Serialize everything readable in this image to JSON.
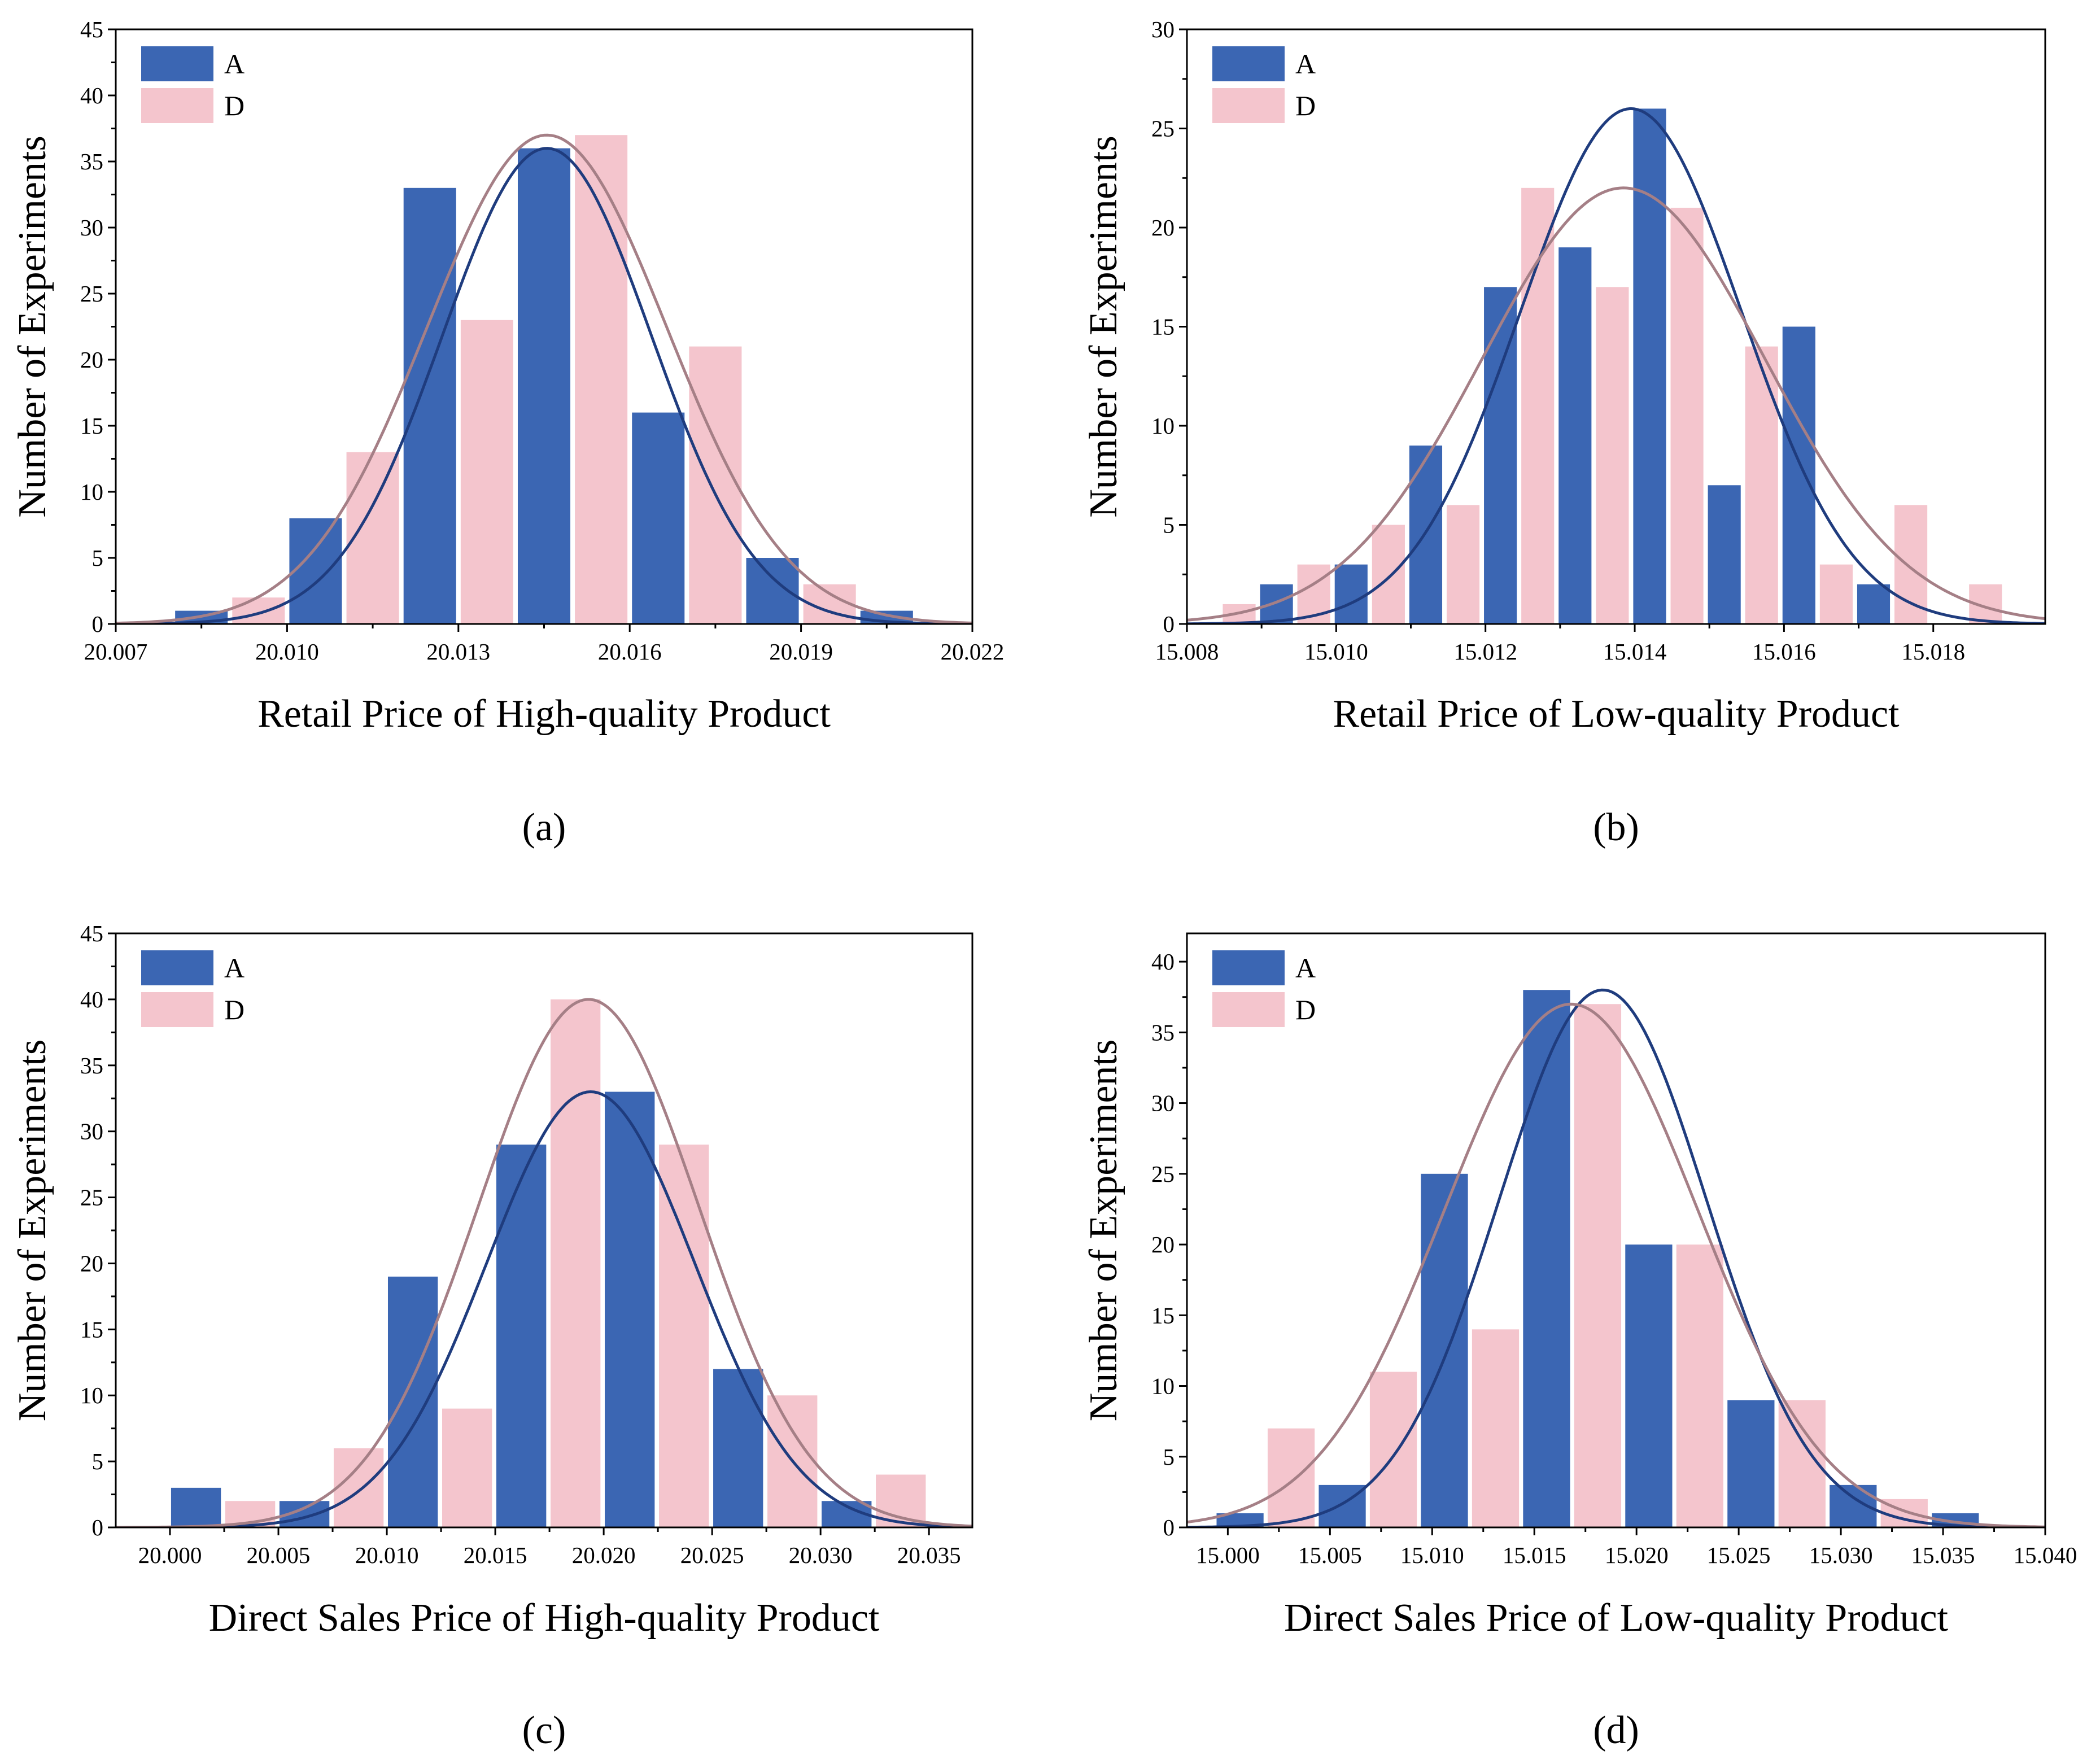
{
  "colors": {
    "A": "#3b66b3",
    "D": "#f4c5cd",
    "A_curve": "#1f3c7e",
    "D_curve": "#a57f86"
  },
  "chart_data": [
    {
      "type": "bar",
      "panel": "(a)",
      "xlabel": "Retail Price of High-quality Product",
      "ylabel": "Number of Experiments",
      "xlim": [
        20.007,
        20.022
      ],
      "ylim": [
        0,
        45
      ],
      "xticks": [
        "20.007",
        "20.010",
        "20.013",
        "20.016",
        "20.019",
        "20.022"
      ],
      "xtick_values": [
        20.007,
        20.01,
        20.013,
        20.016,
        20.019,
        20.022
      ],
      "yticks": [
        "0",
        "5",
        "10",
        "15",
        "20",
        "25",
        "30",
        "35",
        "40",
        "45"
      ],
      "ytick_values": [
        0,
        5,
        10,
        15,
        20,
        25,
        30,
        35,
        40,
        45
      ],
      "legend": [
        "A",
        "D"
      ],
      "legend_position": "top-left",
      "bar_width": 0.00092,
      "series": [
        {
          "name": "A",
          "x": [
            20.0085,
            20.0105,
            20.0125,
            20.0145,
            20.0165,
            20.0185,
            20.0205
          ],
          "values": [
            1,
            8,
            33,
            36,
            16,
            5,
            1
          ],
          "fit": {
            "type": "normal",
            "mean": 20.01455,
            "sd": 0.00183,
            "peak": 36
          }
        },
        {
          "name": "D",
          "x": [
            20.0095,
            20.0115,
            20.0135,
            20.0155,
            20.0175,
            20.0195
          ],
          "values": [
            2,
            13,
            23,
            37,
            21,
            3
          ],
          "fit": {
            "type": "normal",
            "mean": 20.01455,
            "sd": 0.0021,
            "peak": 37
          }
        }
      ]
    },
    {
      "type": "bar",
      "panel": "(b)",
      "xlabel": "Retail Price of Low-quality Product",
      "ylabel": "Number of Experiments",
      "xlim": [
        15.008,
        15.0195
      ],
      "ylim": [
        0,
        30
      ],
      "xticks": [
        "15.008",
        "15.010",
        "15.012",
        "15.014",
        "15.016",
        "15.018"
      ],
      "xtick_values": [
        15.008,
        15.01,
        15.012,
        15.014,
        15.016,
        15.018
      ],
      "yticks": [
        "0",
        "5",
        "10",
        "15",
        "20",
        "25",
        "30"
      ],
      "ytick_values": [
        0,
        5,
        10,
        15,
        20,
        25,
        30
      ],
      "legend": [
        "A",
        "D"
      ],
      "legend_position": "top-left",
      "bar_width": 0.00044,
      "series": [
        {
          "name": "A",
          "x": [
            15.0092,
            15.0102,
            15.0112,
            15.0122,
            15.0132,
            15.0142,
            15.0152,
            15.0162,
            15.0172
          ],
          "values": [
            2,
            3,
            9,
            17,
            19,
            26,
            7,
            15,
            2
          ],
          "fit": {
            "type": "normal",
            "mean": 15.01395,
            "sd": 0.00148,
            "peak": 26
          }
        },
        {
          "name": "D",
          "x": [
            15.0087,
            15.0097,
            15.0107,
            15.0117,
            15.0127,
            15.0137,
            15.0147,
            15.0157,
            15.0167,
            15.0177,
            15.0187
          ],
          "values": [
            1,
            3,
            5,
            6,
            22,
            17,
            21,
            14,
            3,
            6,
            2
          ],
          "fit": {
            "type": "normal",
            "mean": 15.01385,
            "sd": 0.0019,
            "peak": 22
          }
        }
      ]
    },
    {
      "type": "bar",
      "panel": "(c)",
      "xlabel": "Direct Sales Price of High-quality Product",
      "ylabel": "Number of Experiments",
      "xlim": [
        19.9975,
        20.037
      ],
      "ylim": [
        0,
        45
      ],
      "xticks": [
        "20.000",
        "20.005",
        "20.010",
        "20.015",
        "20.020",
        "20.025",
        "20.030",
        "20.035"
      ],
      "xtick_values": [
        20.0,
        20.005,
        20.01,
        20.015,
        20.02,
        20.025,
        20.03,
        20.035
      ],
      "yticks": [
        "0",
        "5",
        "10",
        "15",
        "20",
        "25",
        "30",
        "35",
        "40",
        "45"
      ],
      "ytick_values": [
        0,
        5,
        10,
        15,
        20,
        25,
        30,
        35,
        40,
        45
      ],
      "legend": [
        "A",
        "D"
      ],
      "legend_position": "top-left",
      "bar_width": 0.0023,
      "series": [
        {
          "name": "A",
          "x": [
            20.0012,
            20.0062,
            20.0112,
            20.0162,
            20.0212,
            20.0262,
            20.0312
          ],
          "values": [
            3,
            2,
            19,
            29,
            33,
            12,
            2
          ],
          "fit": {
            "type": "normal",
            "mean": 20.0194,
            "sd": 0.0048,
            "peak": 33
          }
        },
        {
          "name": "D",
          "x": [
            20.0037,
            20.0087,
            20.0137,
            20.0187,
            20.0237,
            20.0287,
            20.0337
          ],
          "values": [
            2,
            6,
            9,
            40,
            29,
            10,
            4
          ],
          "fit": {
            "type": "normal",
            "mean": 20.0193,
            "sd": 0.0051,
            "peak": 40
          }
        }
      ]
    },
    {
      "type": "bar",
      "panel": "(d)",
      "xlabel": "Direct Sales Price of Low-quality Product",
      "ylabel": "Number of Experiments",
      "xlim": [
        14.998,
        15.04
      ],
      "ylim": [
        0,
        42
      ],
      "xticks": [
        "15.000",
        "15.005",
        "15.010",
        "15.015",
        "15.020",
        "15.025",
        "15.030",
        "15.035",
        "15.040"
      ],
      "xtick_values": [
        15.0,
        15.005,
        15.01,
        15.015,
        15.02,
        15.025,
        15.03,
        15.035,
        15.04
      ],
      "yticks": [
        "0",
        "5",
        "10",
        "15",
        "20",
        "25",
        "30",
        "35",
        "40"
      ],
      "ytick_values": [
        0,
        5,
        10,
        15,
        20,
        25,
        30,
        35,
        40
      ],
      "legend": [
        "A",
        "D"
      ],
      "legend_position": "top-left",
      "bar_width": 0.0023,
      "series": [
        {
          "name": "A",
          "x": [
            15.0006,
            15.0056,
            15.0106,
            15.0156,
            15.0206,
            15.0256,
            15.0306,
            15.0356
          ],
          "values": [
            1,
            3,
            25,
            38,
            20,
            9,
            3,
            1
          ],
          "fit": {
            "type": "normal",
            "mean": 15.01835,
            "sd": 0.0051,
            "peak": 38
          }
        },
        {
          "name": "D",
          "x": [
            15.0031,
            15.0081,
            15.0131,
            15.0181,
            15.0231,
            15.0281,
            15.0331
          ],
          "values": [
            7,
            11,
            14,
            37,
            20,
            9,
            2
          ],
          "fit": {
            "type": "normal",
            "mean": 15.0168,
            "sd": 0.0062,
            "peak": 37
          }
        }
      ]
    }
  ]
}
